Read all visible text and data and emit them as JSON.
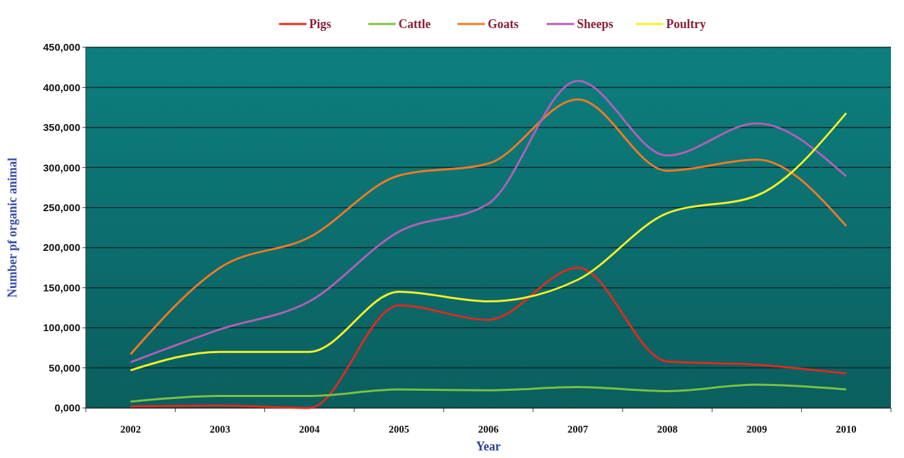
{
  "chart_data": {
    "type": "line",
    "xlabel": "Year",
    "ylabel": "Number pf organic animal",
    "categories": [
      "2002",
      "2003",
      "2004",
      "2005",
      "2006",
      "2007",
      "2008",
      "2009",
      "2010"
    ],
    "series": [
      {
        "name": "Pigs",
        "color": "#e02a1e",
        "values": [
          2000,
          3000,
          0,
          128000,
          110000,
          175000,
          58000,
          54000,
          43000
        ]
      },
      {
        "name": "Cattle",
        "color": "#7cc242",
        "values": [
          8000,
          15000,
          15000,
          23000,
          22000,
          26000,
          21000,
          29000,
          23000
        ]
      },
      {
        "name": "Goats",
        "color": "#f07a24",
        "values": [
          67000,
          175000,
          213000,
          290000,
          305000,
          385000,
          296000,
          310000,
          227000
        ]
      },
      {
        "name": "Sheeps",
        "color": "#b060b8",
        "values": [
          57000,
          98000,
          133000,
          220000,
          255000,
          408000,
          315000,
          355000,
          289000
        ]
      },
      {
        "name": "Poultry",
        "color": "#f5f02a",
        "values": [
          47000,
          70000,
          70000,
          145000,
          133000,
          160000,
          243000,
          265000,
          368000
        ]
      }
    ],
    "ylim": [
      0,
      450000
    ],
    "yticks": [
      {
        "value": 0,
        "label": "0,000"
      },
      {
        "value": 50000,
        "label": "50,000"
      },
      {
        "value": 100000,
        "label": "100,000"
      },
      {
        "value": 150000,
        "label": "150,000"
      },
      {
        "value": 200000,
        "label": "200,000"
      },
      {
        "value": 250000,
        "label": "250,000"
      },
      {
        "value": 300000,
        "label": "300,000"
      },
      {
        "value": 350000,
        "label": "350,000"
      },
      {
        "value": 400000,
        "label": "400,000"
      },
      {
        "value": 450000,
        "label": "450,000"
      }
    ],
    "grid": "y",
    "legend": "top",
    "marker": "none",
    "line_style": "solid"
  }
}
